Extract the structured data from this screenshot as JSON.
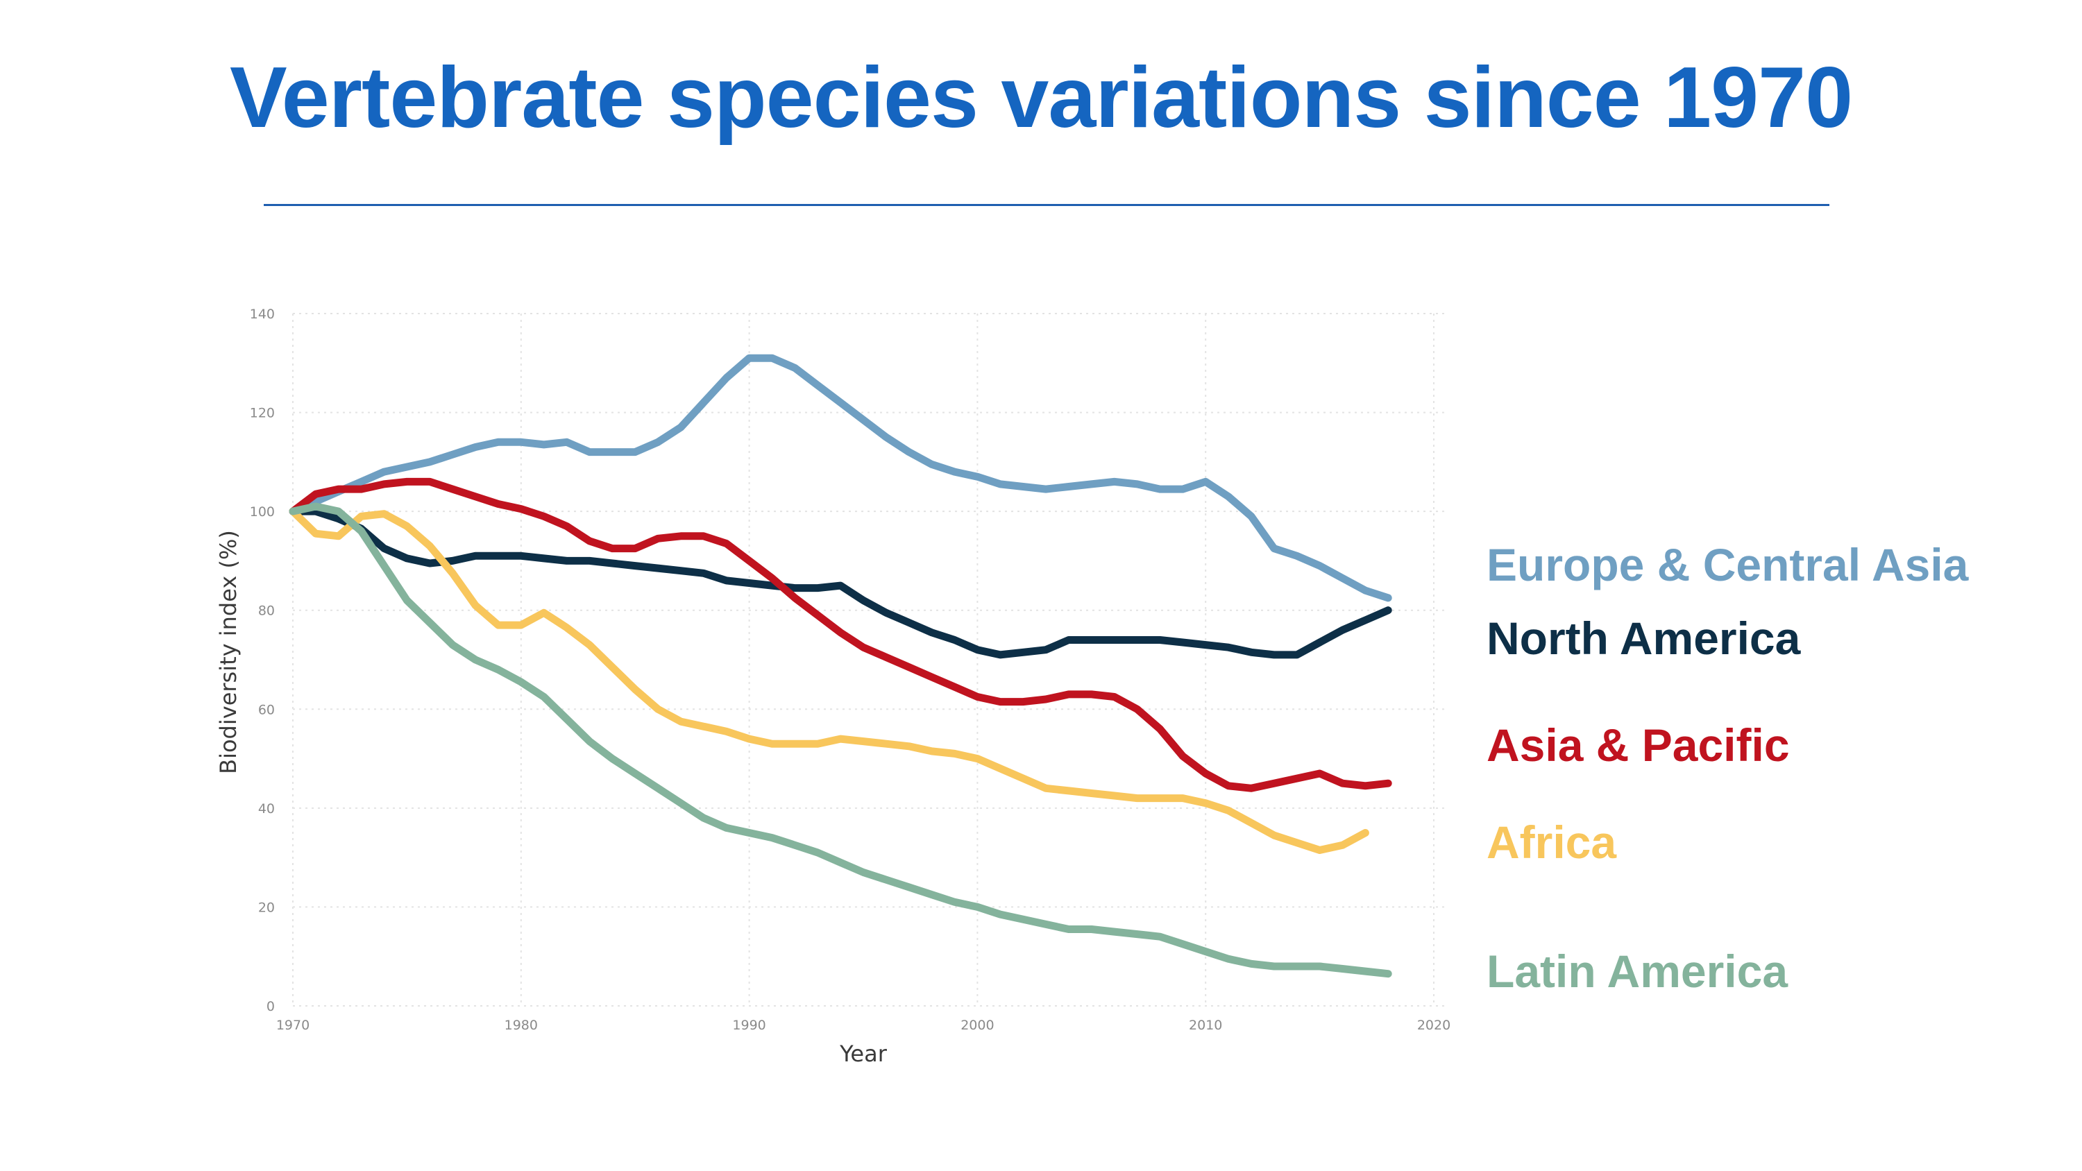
{
  "title": "Vertebrate species variations since 1970",
  "colors": {
    "title": "#1565c0",
    "europe": "#6f9fc2",
    "north_america": "#0d2f47",
    "asia": "#c0131f",
    "africa": "#f8c65c",
    "latin": "#84b39c"
  },
  "chart_data": {
    "type": "line",
    "xlabel": "Year",
    "ylabel": "Biodiversity index (%)",
    "xlim": [
      1970,
      2020
    ],
    "ylim": [
      0,
      140
    ],
    "xticks": [
      "1970",
      "1980",
      "1990",
      "2000",
      "2010",
      "2020"
    ],
    "yticks": [
      "0",
      "20",
      "40",
      "60",
      "80",
      "100",
      "120",
      "140"
    ],
    "grid": true,
    "legend_position": "right",
    "series": [
      {
        "name": "Europe & Central Asia",
        "color": "#6f9fc2",
        "x": [
          1970,
          1971,
          1972,
          1973,
          1974,
          1975,
          1976,
          1977,
          1978,
          1979,
          1980,
          1981,
          1982,
          1983,
          1984,
          1985,
          1986,
          1987,
          1988,
          1989,
          1990,
          1991,
          1992,
          1993,
          1994,
          1995,
          1996,
          1997,
          1998,
          1999,
          2000,
          2001,
          2002,
          2003,
          2004,
          2005,
          2006,
          2007,
          2008,
          2009,
          2010,
          2011,
          2012,
          2013,
          2014,
          2015,
          2016,
          2017,
          2018
        ],
        "y": [
          100,
          102,
          104,
          106,
          108,
          109,
          110,
          111.5,
          113,
          114,
          114,
          113.5,
          114,
          112,
          112,
          112,
          114,
          117,
          122,
          127,
          131,
          131,
          129,
          125.5,
          122,
          118.5,
          115,
          112,
          109.5,
          108,
          107,
          105.5,
          105,
          104.5,
          105,
          105.5,
          106,
          105.5,
          104.5,
          104.5,
          106,
          103,
          99,
          92.5,
          91,
          89,
          86.5,
          84,
          82.5
        ]
      },
      {
        "name": "North America",
        "color": "#0d2f47",
        "x": [
          1970,
          1971,
          1972,
          1973,
          1974,
          1975,
          1976,
          1977,
          1978,
          1979,
          1980,
          1981,
          1982,
          1983,
          1984,
          1985,
          1986,
          1987,
          1988,
          1989,
          1990,
          1991,
          1992,
          1993,
          1994,
          1995,
          1996,
          1997,
          1998,
          1999,
          2000,
          2001,
          2002,
          2003,
          2004,
          2005,
          2006,
          2007,
          2008,
          2009,
          2010,
          2011,
          2012,
          2013,
          2014,
          2015,
          2016,
          2017,
          2018
        ],
        "y": [
          100,
          100,
          98.5,
          96.5,
          92.5,
          90.5,
          89.5,
          90,
          91,
          91,
          91,
          90.5,
          90,
          90,
          89.5,
          89,
          88.5,
          88,
          87.5,
          86,
          85.5,
          85,
          84.5,
          84.5,
          85,
          82,
          79.5,
          77.5,
          75.5,
          74,
          72,
          71,
          71.5,
          72,
          74,
          74,
          74,
          74,
          74,
          73.5,
          73,
          72.5,
          71.5,
          71,
          71,
          73.5,
          76,
          78,
          80
        ]
      },
      {
        "name": "Asia & Pacific",
        "color": "#c0131f",
        "x": [
          1970,
          1971,
          1972,
          1973,
          1974,
          1975,
          1976,
          1977,
          1978,
          1979,
          1980,
          1981,
          1982,
          1983,
          1984,
          1985,
          1986,
          1987,
          1988,
          1989,
          1990,
          1991,
          1992,
          1993,
          1994,
          1995,
          1996,
          1997,
          1998,
          1999,
          2000,
          2001,
          2002,
          2003,
          2004,
          2005,
          2006,
          2007,
          2008,
          2009,
          2010,
          2011,
          2012,
          2013,
          2014,
          2015,
          2016,
          2017,
          2018
        ],
        "y": [
          100,
          103.5,
          104.5,
          104.5,
          105.5,
          106,
          106,
          104.5,
          103,
          101.5,
          100.5,
          99,
          97,
          94,
          92.5,
          92.5,
          94.5,
          95,
          95,
          93.5,
          90,
          86.5,
          82.5,
          79,
          75.5,
          72.5,
          70.5,
          68.5,
          66.5,
          64.5,
          62.5,
          61.5,
          61.5,
          62,
          63,
          63,
          62.5,
          60,
          56,
          50.5,
          47,
          44.5,
          44,
          45,
          46,
          47,
          45,
          44.5,
          45
        ]
      },
      {
        "name": "Africa",
        "color": "#f8c65c",
        "x": [
          1970,
          1971,
          1972,
          1973,
          1974,
          1975,
          1976,
          1977,
          1978,
          1979,
          1980,
          1981,
          1982,
          1983,
          1984,
          1985,
          1986,
          1987,
          1988,
          1989,
          1990,
          1991,
          1992,
          1993,
          1994,
          1995,
          1996,
          1997,
          1998,
          1999,
          2000,
          2001,
          2002,
          2003,
          2004,
          2005,
          2006,
          2007,
          2008,
          2009,
          2010,
          2011,
          2012,
          2013,
          2014,
          2015,
          2016,
          2017
        ],
        "y": [
          100,
          95.5,
          95,
          99,
          99.5,
          97,
          93,
          87.5,
          81,
          77,
          77,
          79.5,
          76.5,
          73,
          68.5,
          64,
          60,
          57.5,
          56.5,
          55.5,
          54,
          53,
          53,
          53,
          54,
          53.5,
          53,
          52.5,
          51.5,
          51,
          50,
          48,
          46,
          44,
          43.5,
          43,
          42.5,
          42,
          42,
          42,
          41,
          39.5,
          37,
          34.5,
          33,
          31.5,
          32.5,
          35
        ]
      },
      {
        "name": "Latin America",
        "color": "#84b39c",
        "x": [
          1970,
          1971,
          1972,
          1973,
          1974,
          1975,
          1976,
          1977,
          1978,
          1979,
          1980,
          1981,
          1982,
          1983,
          1984,
          1985,
          1986,
          1987,
          1988,
          1989,
          1990,
          1991,
          1992,
          1993,
          1994,
          1995,
          1996,
          1997,
          1998,
          1999,
          2000,
          2001,
          2002,
          2003,
          2004,
          2005,
          2006,
          2007,
          2008,
          2009,
          2010,
          2011,
          2012,
          2013,
          2014,
          2015,
          2016,
          2017,
          2018
        ],
        "y": [
          100,
          101,
          100,
          96,
          89,
          82,
          77.5,
          73,
          70,
          68,
          65.5,
          62.5,
          58,
          53.5,
          50,
          47,
          44,
          41,
          38,
          36,
          35,
          34,
          32.5,
          31,
          29,
          27,
          25.5,
          24,
          22.5,
          21,
          20,
          18.5,
          17.5,
          16.5,
          15.5,
          15.5,
          15,
          14.5,
          14,
          12.5,
          11,
          9.5,
          8.5,
          8,
          8,
          8,
          7.5,
          7,
          6.5
        ]
      }
    ]
  }
}
